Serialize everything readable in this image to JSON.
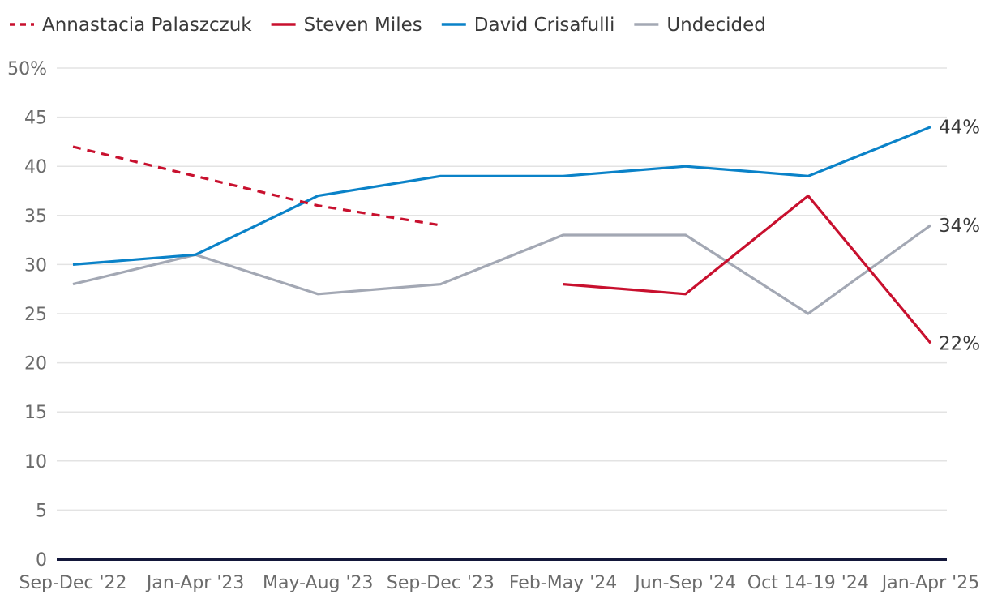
{
  "chart_data": {
    "type": "line",
    "title": "",
    "xlabel": "",
    "ylabel": "",
    "categories": [
      "Sep-Dec '22",
      "Jan-Apr '23",
      "May-Aug '23",
      "Sep-Dec '23",
      "Feb-May '24",
      "Jun-Sep '24",
      "Oct 14-19 '24",
      "Jan-Apr '25"
    ],
    "ylim": [
      0,
      50
    ],
    "yticks": [
      {
        "value": 0,
        "label": "0"
      },
      {
        "value": 5,
        "label": "5"
      },
      {
        "value": 10,
        "label": "10"
      },
      {
        "value": 15,
        "label": "15"
      },
      {
        "value": 20,
        "label": "20"
      },
      {
        "value": 25,
        "label": "25"
      },
      {
        "value": 30,
        "label": "30"
      },
      {
        "value": 35,
        "label": "35"
      },
      {
        "value": 40,
        "label": "40"
      },
      {
        "value": 45,
        "label": "45"
      },
      {
        "value": 50,
        "label": "50%"
      }
    ],
    "grid": true,
    "legend_position": "top-left",
    "series": [
      {
        "name": "Annastacia Palaszczuk",
        "color": "#c8102e",
        "dashed": true,
        "values": [
          42,
          39,
          36,
          34,
          null,
          null,
          null,
          null
        ],
        "end_label": ""
      },
      {
        "name": "Steven Miles",
        "color": "#c8102e",
        "dashed": false,
        "values": [
          null,
          null,
          null,
          null,
          28,
          27,
          37,
          22
        ],
        "end_label": "22%"
      },
      {
        "name": "David Crisafulli",
        "color": "#0a82c8",
        "dashed": false,
        "values": [
          30,
          31,
          37,
          39,
          39,
          40,
          39,
          44
        ],
        "end_label": "44%"
      },
      {
        "name": "Undecided",
        "color": "#a3a8b4",
        "dashed": false,
        "values": [
          28,
          31,
          27,
          28,
          33,
          33,
          25,
          34
        ],
        "end_label": "34%"
      }
    ]
  }
}
